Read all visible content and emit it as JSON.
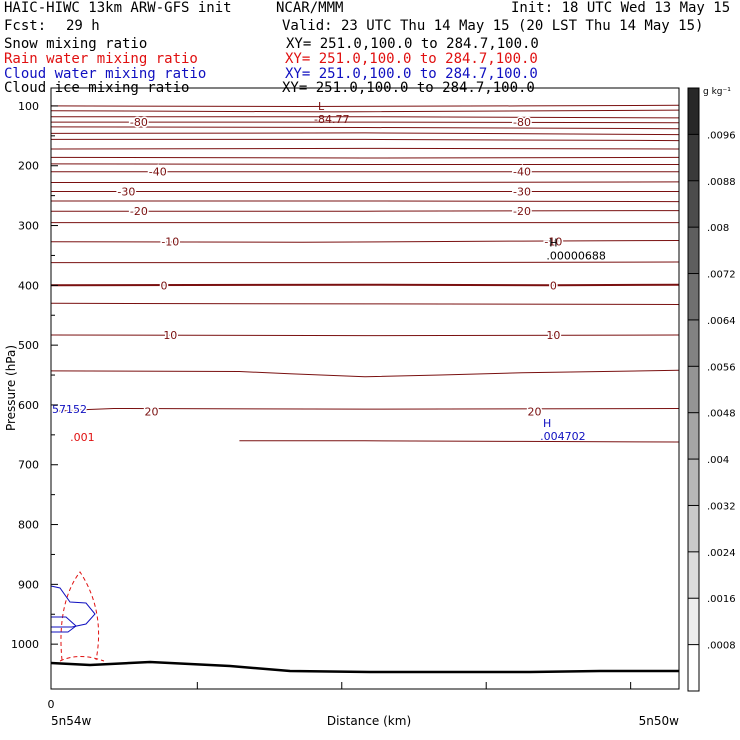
{
  "header": {
    "model_line": "HAIC-HIWC 13km ARW-GFS init",
    "org": "NCAR/MMM",
    "init": "Init: 18 UTC Wed 13 May 15",
    "fcst_label": "Fcst:",
    "fcst_value": "29 h",
    "valid": "Valid: 23 UTC Thu 14 May 15 (20 LST Thu 14 May 15)"
  },
  "fields": [
    {
      "name": "Snow mixing ratio",
      "xy": "XY= 251.0,100.0 to 284.7,100.0",
      "color": "#000000"
    },
    {
      "name": "Rain water mixing ratio",
      "xy": "XY= 251.0,100.0 to 284.7,100.0",
      "color": "#e01010"
    },
    {
      "name": "Cloud water mixing ratio",
      "xy": "XY= 251.0,100.0 to 284.7,100.0",
      "color": "#1010c0"
    },
    {
      "name": "Cloud ice mixing ratio",
      "xy": "XY= 251.0,100.0 to 284.7,100.0",
      "color": "#000000"
    }
  ],
  "chart_data": {
    "type": "contour-cross-section",
    "ylabel": "Pressure (hPa)",
    "xlabel": "Distance (km)",
    "y_ticks": [
      100,
      200,
      300,
      400,
      500,
      600,
      700,
      800,
      900,
      1000
    ],
    "ylim": [
      70,
      1075
    ],
    "x_axis_labels": {
      "origin": "0",
      "left": "5n54w",
      "right": "5n50w"
    },
    "temperature_contours_C": [
      -80,
      -40,
      -30,
      -20,
      -10,
      0,
      10,
      20
    ],
    "contour_labels": [
      {
        "text": "-80",
        "p": 127,
        "x": 0.14
      },
      {
        "text": "-80",
        "p": 127,
        "x": 0.75
      },
      {
        "text": "-40",
        "p": 210,
        "x": 0.17
      },
      {
        "text": "-40",
        "p": 210,
        "x": 0.75
      },
      {
        "text": "-30",
        "p": 243,
        "x": 0.12
      },
      {
        "text": "-30",
        "p": 243,
        "x": 0.75
      },
      {
        "text": "-20",
        "p": 276,
        "x": 0.14
      },
      {
        "text": "-20",
        "p": 276,
        "x": 0.75
      },
      {
        "text": "-10",
        "p": 327,
        "x": 0.19
      },
      {
        "text": "-10",
        "p": 327,
        "x": 0.8
      },
      {
        "text": "0",
        "p": 400,
        "x": 0.18
      },
      {
        "text": "0",
        "p": 400,
        "x": 0.8
      },
      {
        "text": "10",
        "p": 483,
        "x": 0.19
      },
      {
        "text": "10",
        "p": 483,
        "x": 0.8
      },
      {
        "text": "20",
        "p": 611,
        "x": 0.16
      },
      {
        "text": "20",
        "p": 611,
        "x": 0.77
      }
    ],
    "extrema": [
      {
        "mark": "L",
        "value": "-84.77",
        "p": 110,
        "x": 0.43,
        "color": "#7a1010"
      },
      {
        "mark": "H",
        "value": ".00000688",
        "p": 338,
        "x": 0.8,
        "color": "#000000"
      },
      {
        "mark": "H",
        "value": ".004702",
        "p": 640,
        "x": 0.79,
        "color": "#1010c0"
      }
    ],
    "rain_label": {
      "text": ".001",
      "p": 654,
      "x": 0.05
    },
    "cloud_label": {
      "text": "57152",
      "p": 607,
      "x": 0.0
    },
    "colorbar": {
      "unit": "g kg⁻¹",
      "levels": [
        ".0096",
        ".0088",
        ".008",
        ".0072",
        ".0064",
        ".0056",
        ".0048",
        ".004",
        ".0032",
        ".0024",
        ".0016",
        ".0008"
      ]
    }
  }
}
